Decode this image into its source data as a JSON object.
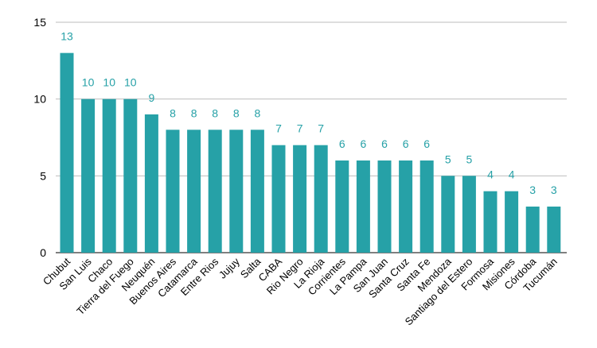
{
  "chart_data": {
    "type": "bar",
    "title": "",
    "xlabel": "",
    "ylabel": "",
    "ylim": [
      0,
      15
    ],
    "yticks": [
      0,
      5,
      10,
      15
    ],
    "grid": true,
    "legend": "none",
    "bar_color": "#26a1a7",
    "label_color": "#26a1a7",
    "categories": [
      "Chubut",
      "San Luis",
      "Chaco",
      "Tierra del Fuego",
      "Neuquén",
      "Buenos Aires",
      "Catamarca",
      "Entre Rios",
      "Jujuy",
      "Salta",
      "CABA",
      "Rio Negro",
      "La Rioja",
      "Corrientes",
      "La Pampa",
      "San Juan",
      "Santa Cruz",
      "Santa Fe",
      "Mendoza",
      "Santiago del Estero",
      "Formosa",
      "Misiones",
      "Córdoba",
      "Tucumán"
    ],
    "values": [
      13,
      10,
      10,
      10,
      9,
      8,
      8,
      8,
      8,
      8,
      7,
      7,
      7,
      6,
      6,
      6,
      6,
      6,
      5,
      5,
      4,
      4,
      3,
      3
    ]
  }
}
